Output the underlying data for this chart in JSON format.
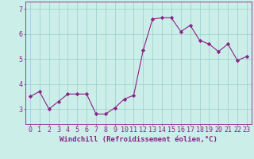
{
  "x": [
    0,
    1,
    2,
    3,
    4,
    5,
    6,
    7,
    8,
    9,
    10,
    11,
    12,
    13,
    14,
    15,
    16,
    17,
    18,
    19,
    20,
    21,
    22,
    23
  ],
  "y": [
    3.5,
    3.7,
    3.0,
    3.3,
    3.6,
    3.6,
    3.6,
    2.8,
    2.8,
    3.05,
    3.4,
    3.55,
    5.35,
    6.6,
    6.65,
    6.65,
    6.1,
    6.35,
    5.75,
    5.6,
    5.3,
    5.6,
    4.95,
    5.1
  ],
  "line_color": "#882288",
  "marker": "D",
  "marker_size": 2.2,
  "bg_color": "#cceee8",
  "grid_color": "#99cccc",
  "xlabel": "Windchill (Refroidissement éolien,°C)",
  "xlim": [
    -0.5,
    23.5
  ],
  "ylim": [
    2.4,
    7.3
  ],
  "yticks": [
    3,
    4,
    5,
    6,
    7
  ],
  "xtick_labels": [
    "0",
    "1",
    "2",
    "3",
    "4",
    "5",
    "6",
    "7",
    "8",
    "9",
    "10",
    "11",
    "12",
    "13",
    "14",
    "15",
    "16",
    "17",
    "18",
    "19",
    "20",
    "21",
    "22",
    "23"
  ],
  "xlabel_fontsize": 6.5,
  "tick_fontsize": 6.0,
  "linewidth": 0.8
}
